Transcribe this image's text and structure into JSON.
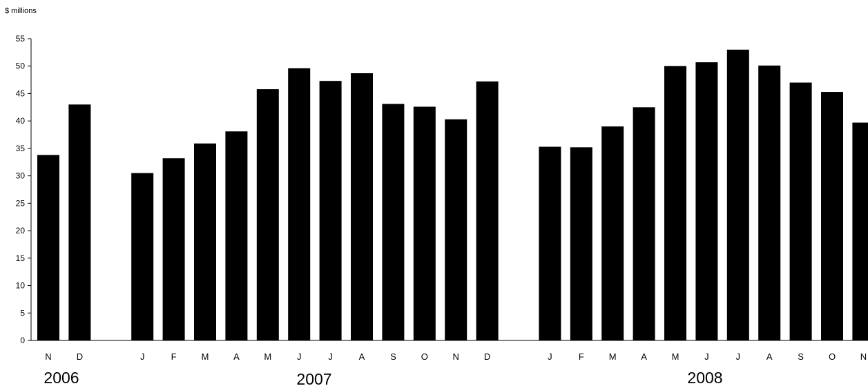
{
  "chart_data": {
    "type": "bar",
    "ylabel": "$ millions",
    "ylim": [
      0,
      55
    ],
    "yticks": [
      0,
      5,
      10,
      15,
      20,
      25,
      30,
      35,
      40,
      45,
      50,
      55
    ],
    "bar_color": "#000000",
    "groups": [
      {
        "year": "2006",
        "categories": [
          "N",
          "D"
        ],
        "values": [
          33.8,
          43.0
        ]
      },
      {
        "year": "2007",
        "categories": [
          "J",
          "F",
          "M",
          "A",
          "M",
          "J",
          "J",
          "A",
          "S",
          "O",
          "N",
          "D"
        ],
        "values": [
          30.5,
          33.2,
          35.9,
          38.1,
          45.8,
          49.6,
          47.3,
          48.7,
          43.1,
          42.6,
          40.3,
          47.2
        ]
      },
      {
        "year": "2008",
        "categories": [
          "J",
          "F",
          "M",
          "A",
          "M",
          "J",
          "J",
          "A",
          "S",
          "O",
          "N"
        ],
        "values": [
          35.3,
          35.2,
          39.0,
          42.5,
          50.0,
          50.7,
          53.0,
          50.1,
          47.0,
          45.3,
          39.7
        ]
      }
    ]
  }
}
